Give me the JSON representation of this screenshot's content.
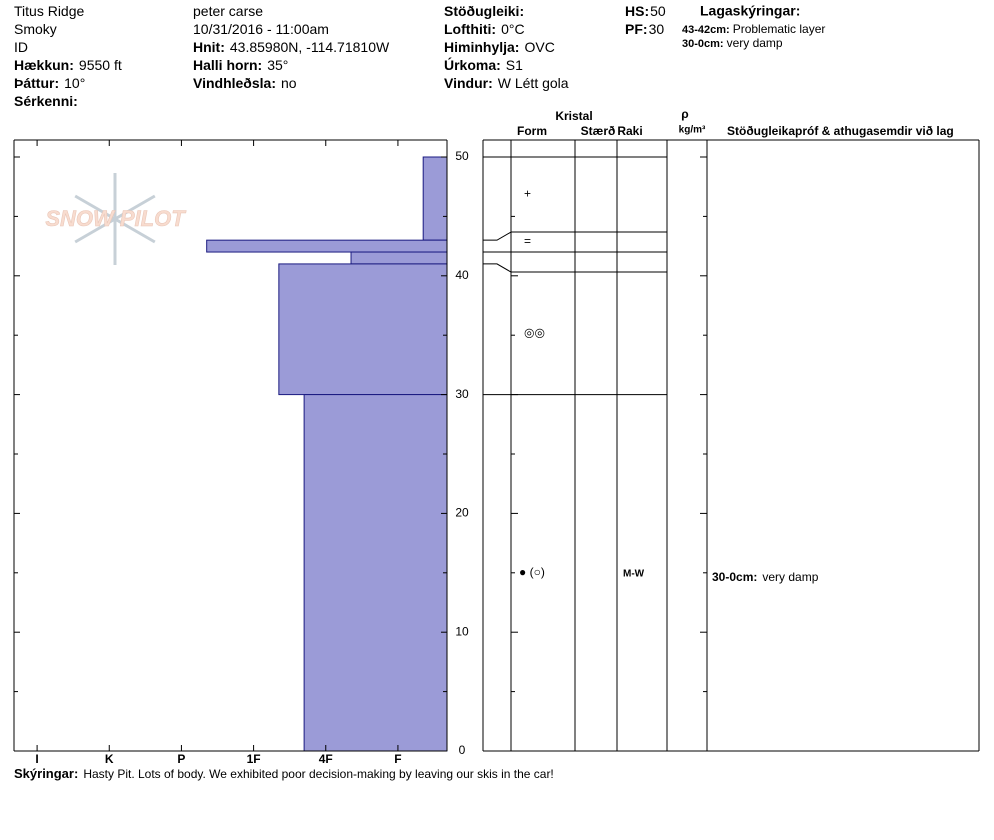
{
  "header": {
    "columns": [
      [
        {
          "value": "Titus Ridge"
        },
        {
          "value": "Smoky"
        },
        {
          "value": "ID"
        },
        {
          "label": "Hækkun:",
          "value": "9550 ft"
        },
        {
          "label": "Þáttur:",
          "value": "10°"
        },
        {
          "label": "Sérkenni:"
        }
      ],
      [
        {
          "value": "peter carse"
        },
        {
          "value": "10/31/2016 - 11:00am"
        },
        {
          "label": "Hnit:",
          "value": "43.85980N, -114.71810W"
        },
        {
          "label": "Halli horn:",
          "value": "35°"
        },
        {
          "label": "Vindhleðsla:",
          "value": "no"
        }
      ],
      [
        {
          "label": "Stöðugleiki:"
        },
        {
          "label": "Lofthiti:",
          "value": "0°C"
        },
        {
          "label": "Himinhylja:",
          "value": "OVC"
        },
        {
          "label": "Úrkoma:",
          "value": "S1"
        },
        {
          "label": "Vindur:",
          "value": "W Létt gola"
        }
      ],
      [
        {
          "label": "HS:",
          "value": 50
        },
        {
          "label": "PF:",
          "value": 30
        }
      ]
    ],
    "legend_title": "Lagaskýringar:",
    "legend_items": [
      {
        "range": "43-42cm:",
        "text": "Problematic layer"
      },
      {
        "range": "30-0cm:",
        "text": "very damp"
      }
    ]
  },
  "logo": "SNOW PILOT",
  "table_headers": {
    "crystal": "Kristal",
    "form": "Form",
    "size": "Stærð",
    "moisture": "Raki",
    "rho": "ρ",
    "density_unit": "kg/m³",
    "comments": "Stöðugleikapróf & athugasemdir við lag"
  },
  "chart_data": {
    "type": "snow-profile",
    "color": "#9b9bd7",
    "ylim": [
      0,
      50
    ],
    "yticks": [
      0,
      10,
      20,
      30,
      40,
      50
    ],
    "xlim": [
      6.32,
      0.32
    ],
    "xticks": [
      {
        "value": 6,
        "label": "I"
      },
      {
        "value": 5,
        "label": "K"
      },
      {
        "value": 4,
        "label": "P"
      },
      {
        "value": 3,
        "label": "1F"
      },
      {
        "value": 2,
        "label": "4F"
      },
      {
        "value": 1,
        "label": "F"
      }
    ],
    "layers": [
      {
        "top": 50,
        "bottom": 43,
        "hardness": 0.65,
        "form": "+"
      },
      {
        "top": 43,
        "bottom": 42,
        "hardness": 3.65,
        "form": "="
      },
      {
        "top": 42,
        "bottom": 41,
        "hardness": 1.65
      },
      {
        "top": 41,
        "bottom": 30,
        "hardness": 2.65,
        "form": "◎◎"
      },
      {
        "top": 30,
        "bottom": 0,
        "hardness": 2.3,
        "form": "● (○)",
        "moisture": "M-W",
        "comment_label": "30-0cm:",
        "comment": "very damp"
      }
    ]
  },
  "footer": {
    "label": "Skýringar:",
    "text": "Hasty Pit. Lots of body. We exhibited poor decision-making by leaving our skis in the car!"
  }
}
